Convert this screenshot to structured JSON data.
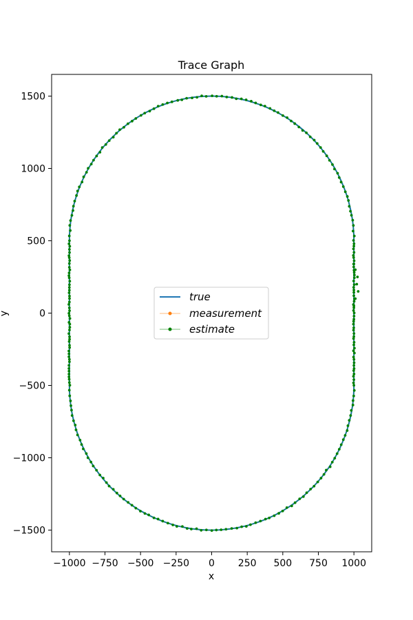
{
  "chart_data": {
    "type": "line",
    "title": "Trace Graph",
    "xlabel": "x",
    "ylabel": "y",
    "xlim": [
      -1125,
      1125
    ],
    "ylim": [
      -1650,
      1650
    ],
    "xticks": [
      -1000,
      -750,
      -500,
      -250,
      0,
      250,
      500,
      750,
      1000
    ],
    "xtick_labels": [
      "−1000",
      "−750",
      "−500",
      "−250",
      "0",
      "250",
      "500",
      "750",
      "1000"
    ],
    "yticks": [
      -1500,
      -1000,
      -500,
      0,
      500,
      1000,
      1500
    ],
    "ytick_labels": [
      "−1500",
      "−1000",
      "−500",
      "0",
      "500",
      "1000",
      "1500"
    ],
    "grid": false,
    "legend_position": "center",
    "track": {
      "shape": "stadium",
      "straight_half_length": 500,
      "radius": 1000
    },
    "series": [
      {
        "name": "true",
        "color": "#1f77b4",
        "marker": "none"
      },
      {
        "name": "measurement",
        "color": "#ff7f0e",
        "marker": "dot"
      },
      {
        "name": "estimate",
        "color": "#008000",
        "marker": "dot",
        "points_per_arc": 90,
        "points_per_straight": 50,
        "deviation": [
          [
            1000,
            340
          ],
          [
            1010,
            300
          ],
          [
            1025,
            250
          ],
          [
            1020,
            200
          ],
          [
            1030,
            150
          ],
          [
            1010,
            100
          ],
          [
            1000,
            50
          ]
        ]
      }
    ]
  }
}
